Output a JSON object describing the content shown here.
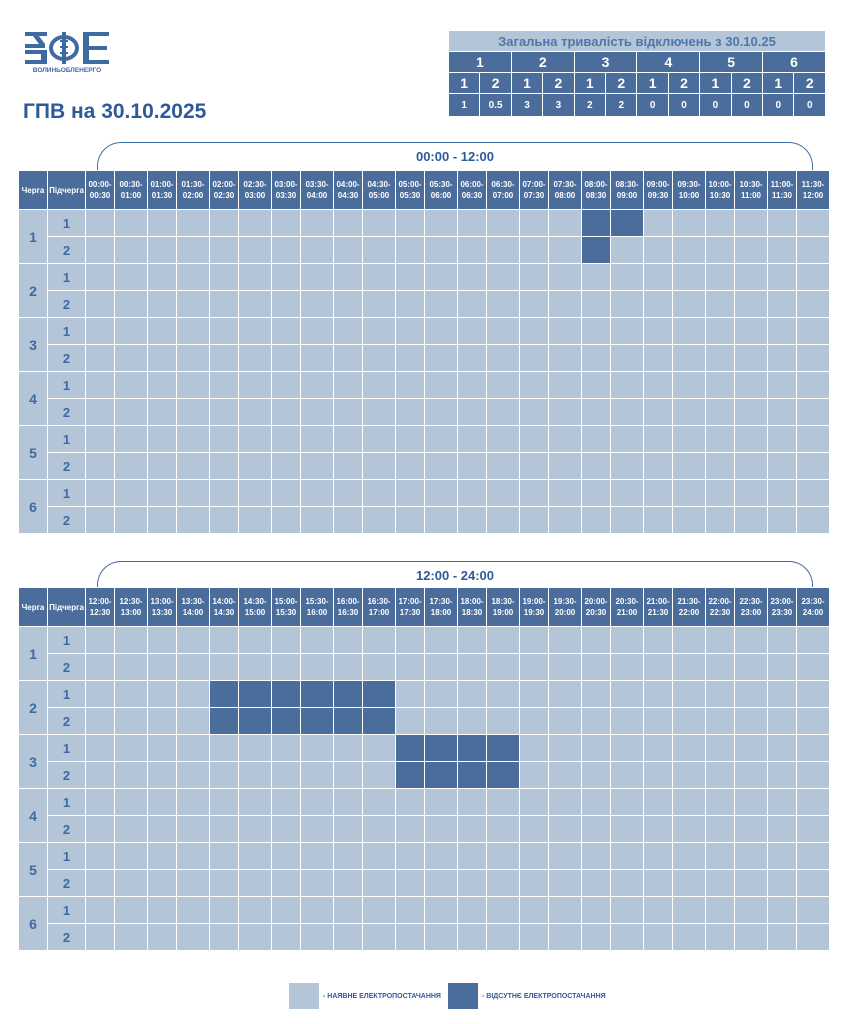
{
  "brand": {
    "logo_text": "ВОЛИНЬОБЛЕНЕРГО",
    "logo_color": "#3e6aa2"
  },
  "page_title": "ГПВ на 30.10.2025",
  "summary": {
    "title": "Загальна тривалість відключень з 30.10.25",
    "queues": [
      "1",
      "2",
      "3",
      "4",
      "5",
      "6"
    ],
    "subqueues": [
      "1",
      "2"
    ],
    "values": [
      "1",
      "0.5",
      "3",
      "3",
      "2",
      "2",
      "0",
      "0",
      "0",
      "0",
      "0",
      "0"
    ]
  },
  "header_labels": {
    "queue": "Черга",
    "subqueue": "Підчерга"
  },
  "colors": {
    "available": "#b4c5d8",
    "unavailable": "#4a6d9c",
    "header": "#4a6d9c"
  },
  "legend": {
    "available_label": "- НАЯВНЕ ЕЛЕКТРОПОСТАЧАННЯ",
    "unavailable_label": "- ВІДСУТНЄ ЕЛЕКТРОПОСТАЧАННЯ"
  },
  "tables": [
    {
      "range_label": "00:00 - 12:00",
      "slots": [
        [
          "00:00-",
          "00:30"
        ],
        [
          "00:30-",
          "01:00"
        ],
        [
          "01:00-",
          "01:30"
        ],
        [
          "01:30-",
          "02:00"
        ],
        [
          "02:00-",
          "02:30"
        ],
        [
          "02:30-",
          "03:00"
        ],
        [
          "03:00-",
          "03:30"
        ],
        [
          "03:30-",
          "04:00"
        ],
        [
          "04:00-",
          "04:30"
        ],
        [
          "04:30-",
          "05:00"
        ],
        [
          "05:00-",
          "05:30"
        ],
        [
          "05:30-",
          "06:00"
        ],
        [
          "06:00-",
          "06:30"
        ],
        [
          "06:30-",
          "07:00"
        ],
        [
          "07:00-",
          "07:30"
        ],
        [
          "07:30-",
          "08:00"
        ],
        [
          "08:00-",
          "08:30"
        ],
        [
          "08:30-",
          "09:00"
        ],
        [
          "09:00-",
          "09:30"
        ],
        [
          "09:30-",
          "10:00"
        ],
        [
          "10:00-",
          "10:30"
        ],
        [
          "10:30-",
          "11:00"
        ],
        [
          "11:00-",
          "11:30"
        ],
        [
          "11:30-",
          "12:00"
        ]
      ],
      "rows": [
        {
          "queue": "1",
          "subqueue": "1",
          "outages": [
            16,
            17
          ]
        },
        {
          "queue": "1",
          "subqueue": "2",
          "outages": [
            16
          ]
        },
        {
          "queue": "2",
          "subqueue": "1",
          "outages": []
        },
        {
          "queue": "2",
          "subqueue": "2",
          "outages": []
        },
        {
          "queue": "3",
          "subqueue": "1",
          "outages": []
        },
        {
          "queue": "3",
          "subqueue": "2",
          "outages": []
        },
        {
          "queue": "4",
          "subqueue": "1",
          "outages": []
        },
        {
          "queue": "4",
          "subqueue": "2",
          "outages": []
        },
        {
          "queue": "5",
          "subqueue": "1",
          "outages": []
        },
        {
          "queue": "5",
          "subqueue": "2",
          "outages": []
        },
        {
          "queue": "6",
          "subqueue": "1",
          "outages": []
        },
        {
          "queue": "6",
          "subqueue": "2",
          "outages": []
        }
      ]
    },
    {
      "range_label": "12:00 - 24:00",
      "slots": [
        [
          "12:00-",
          "12:30"
        ],
        [
          "12:30-",
          "13:00"
        ],
        [
          "13:00-",
          "13:30"
        ],
        [
          "13:30-",
          "14:00"
        ],
        [
          "14:00-",
          "14:30"
        ],
        [
          "14:30-",
          "15:00"
        ],
        [
          "15:00-",
          "15:30"
        ],
        [
          "15:30-",
          "16:00"
        ],
        [
          "16:00-",
          "16:30"
        ],
        [
          "16:30-",
          "17:00"
        ],
        [
          "17:00-",
          "17:30"
        ],
        [
          "17:30-",
          "18:00"
        ],
        [
          "18:00-",
          "18:30"
        ],
        [
          "18:30-",
          "19:00"
        ],
        [
          "19:00-",
          "19:30"
        ],
        [
          "19:30-",
          "20:00"
        ],
        [
          "20:00-",
          "20:30"
        ],
        [
          "20:30-",
          "21:00"
        ],
        [
          "21:00-",
          "21:30"
        ],
        [
          "21:30-",
          "22:00"
        ],
        [
          "22:00-",
          "22:30"
        ],
        [
          "22:30-",
          "23:00"
        ],
        [
          "23:00-",
          "23:30"
        ],
        [
          "23:30-",
          "24:00"
        ]
      ],
      "rows": [
        {
          "queue": "1",
          "subqueue": "1",
          "outages": []
        },
        {
          "queue": "1",
          "subqueue": "2",
          "outages": []
        },
        {
          "queue": "2",
          "subqueue": "1",
          "outages": [
            4,
            5,
            6,
            7,
            8,
            9
          ]
        },
        {
          "queue": "2",
          "subqueue": "2",
          "outages": [
            4,
            5,
            6,
            7,
            8,
            9
          ]
        },
        {
          "queue": "3",
          "subqueue": "1",
          "outages": [
            10,
            11,
            12,
            13
          ]
        },
        {
          "queue": "3",
          "subqueue": "2",
          "outages": [
            10,
            11,
            12,
            13
          ]
        },
        {
          "queue": "4",
          "subqueue": "1",
          "outages": []
        },
        {
          "queue": "4",
          "subqueue": "2",
          "outages": []
        },
        {
          "queue": "5",
          "subqueue": "1",
          "outages": []
        },
        {
          "queue": "5",
          "subqueue": "2",
          "outages": []
        },
        {
          "queue": "6",
          "subqueue": "1",
          "outages": []
        },
        {
          "queue": "6",
          "subqueue": "2",
          "outages": []
        }
      ]
    }
  ]
}
